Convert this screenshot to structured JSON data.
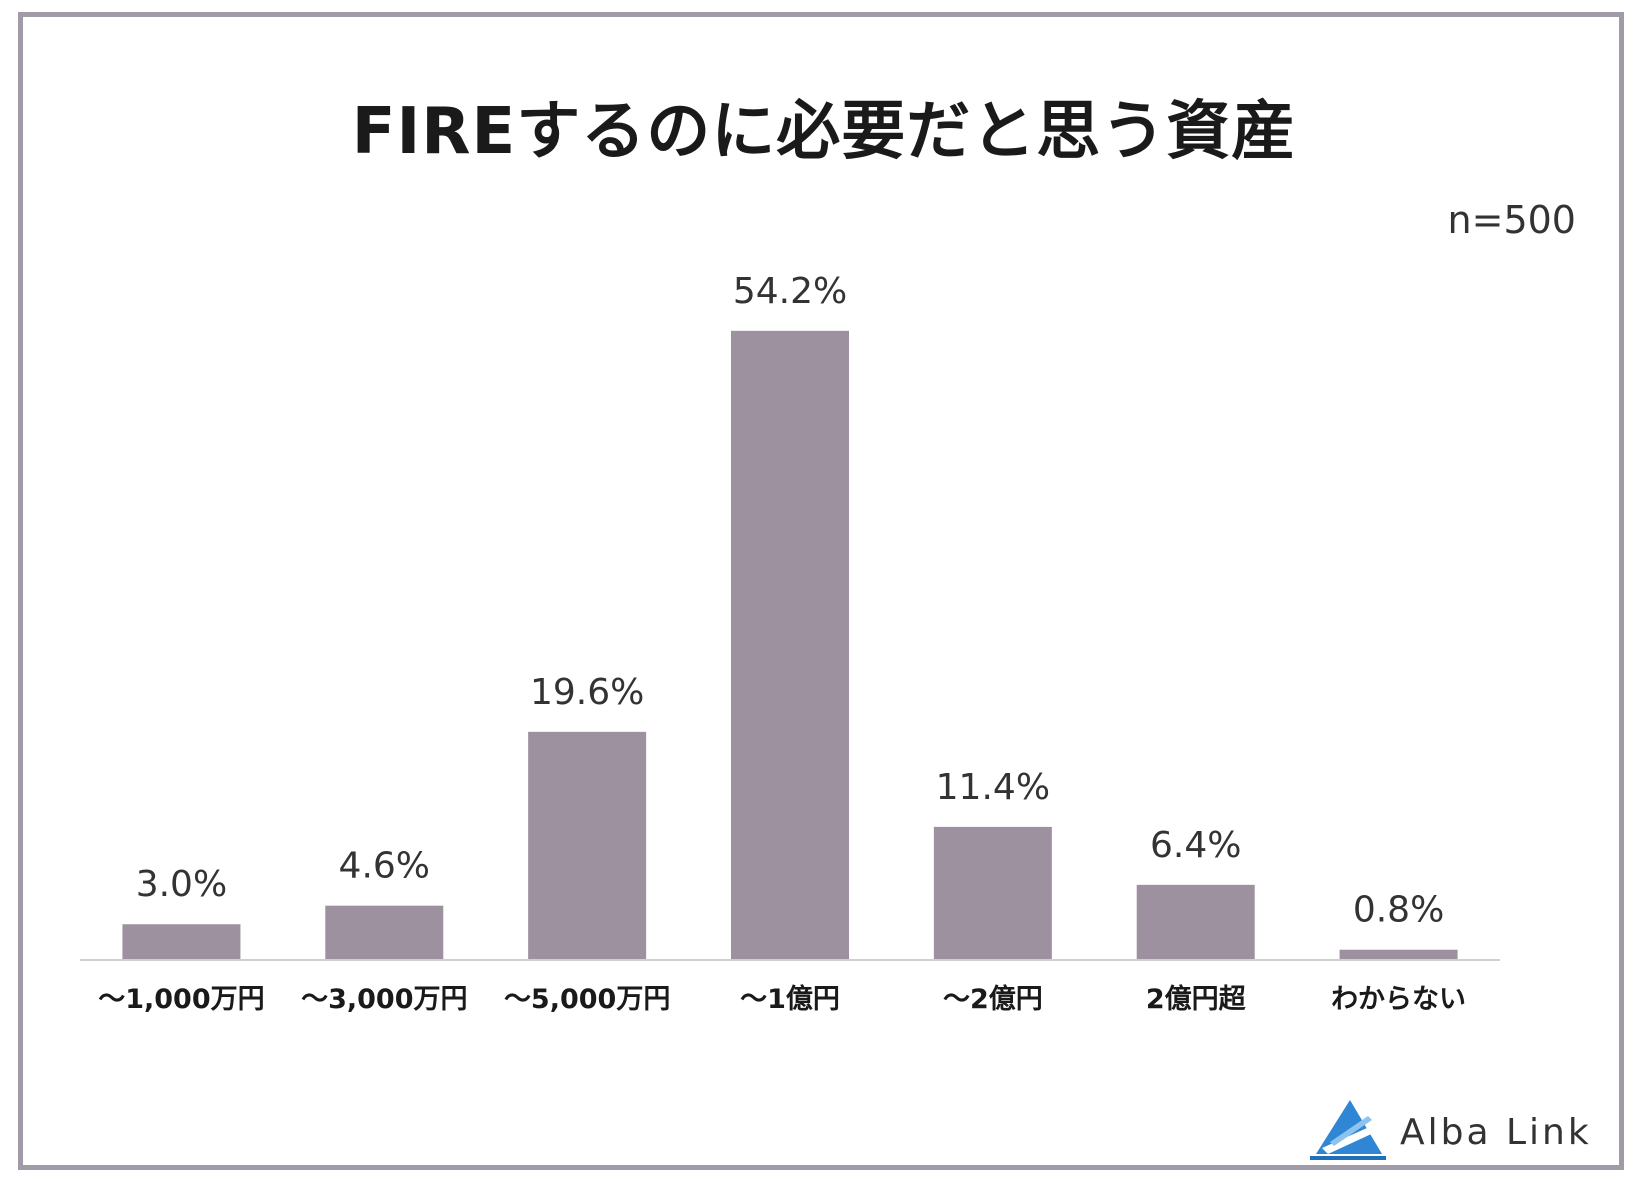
{
  "chart_data": {
    "type": "bar",
    "title": "FIREするのに必要だと思う資産",
    "sample_size": "n=500",
    "categories": [
      "～1,000万円",
      "～3,000万円",
      "～5,000万円",
      "～1億円",
      "～2億円",
      "2億円超",
      "わからない"
    ],
    "values": [
      3.0,
      4.6,
      19.6,
      54.2,
      11.4,
      6.4,
      0.8
    ],
    "value_labels": [
      "3.0%",
      "4.6%",
      "19.6%",
      "54.2%",
      "11.4%",
      "6.4%",
      "0.8%"
    ],
    "unit": "%",
    "ylim": [
      0,
      60
    ],
    "grid": false,
    "bar_color": "#9d919f",
    "axis_color": "#d0d0d0"
  },
  "branding": {
    "logo_text": "Alba Link",
    "logo_color": "#2f86d4"
  }
}
